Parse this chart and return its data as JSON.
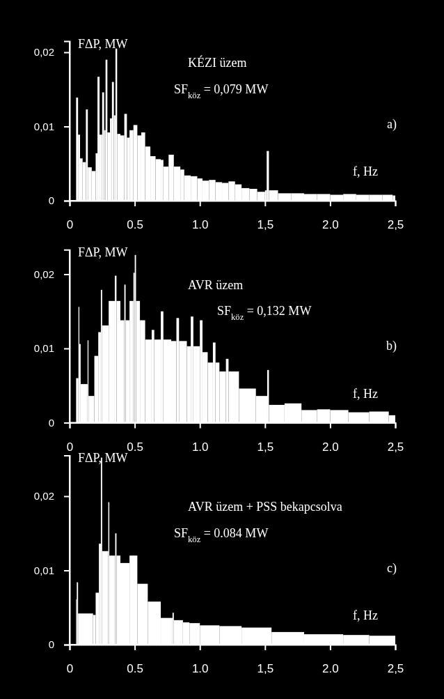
{
  "chart_data": [
    {
      "type": "histogram",
      "xlabel": "f, Hz",
      "ylabel": "FΔP, MW",
      "annotations": [
        "KÉZI üzem",
        "SF$_{köz}$ = 0,079 MW",
        "a)"
      ],
      "color": "#ffffff",
      "xlim": [
        0,
        2.5
      ],
      "xticks": [
        {
          "value": 0,
          "label": "0"
        },
        {
          "value": 0.5,
          "label": "0.5"
        },
        {
          "value": 1,
          "label": "1.0"
        },
        {
          "value": 1.5,
          "label": "1,5"
        },
        {
          "value": 2,
          "label": "2.0"
        },
        {
          "value": 2.5,
          "label": "2,5"
        }
      ],
      "ylim": [
        0,
        0.0215
      ],
      "yticks": [
        {
          "value": 0,
          "label": "0"
        },
        {
          "value": 0.01,
          "label": "0,01"
        },
        {
          "value": 0.02,
          "label": "0,02"
        }
      ],
      "bins": [
        0.05,
        0.065,
        0.08,
        0.1,
        0.125,
        0.14,
        0.17,
        0.2,
        0.214,
        0.23,
        0.25,
        0.265,
        0.276,
        0.29,
        0.31,
        0.325,
        0.34,
        0.352,
        0.365,
        0.39,
        0.42,
        0.44,
        0.46,
        0.49,
        0.52,
        0.55,
        0.58,
        0.62,
        0.66,
        0.7,
        0.72,
        0.76,
        0.8,
        0.85,
        0.88,
        0.93,
        0.98,
        1.02,
        1.07,
        1.12,
        1.17,
        1.22,
        1.27,
        1.32,
        1.38,
        1.44,
        1.5,
        1.513,
        1.53,
        1.6,
        1.7,
        1.8,
        1.9,
        2.0,
        2.1,
        2.2,
        2.3,
        2.4,
        2.48,
        2.5
      ],
      "values": [
        0.0139,
        0.0089,
        0.0057,
        0.0052,
        0.0123,
        0.0045,
        0.004,
        0.0064,
        0.0167,
        0.0089,
        0.0146,
        0.0095,
        0.019,
        0.0092,
        0.0111,
        0.016,
        0.0115,
        0.0205,
        0.009,
        0.0088,
        0.0117,
        0.0085,
        0.0095,
        0.0102,
        0.0088,
        0.0092,
        0.0073,
        0.006,
        0.0056,
        0.0055,
        0.0046,
        0.0062,
        0.0046,
        0.0042,
        0.0034,
        0.0033,
        0.003,
        0.0027,
        0.0028,
        0.0025,
        0.0024,
        0.0026,
        0.0022,
        0.0017,
        0.0016,
        0.0012,
        0.0014,
        0.0067,
        0.0014,
        0.001,
        0.001,
        0.0009,
        0.0009,
        0.0008,
        0.0009,
        0.0008,
        0.0008,
        0.0008,
        0.0007
      ]
    },
    {
      "type": "histogram",
      "xlabel": "f, Hz",
      "ylabel": "FΔP, MW",
      "annotations": [
        "AVR üzem",
        "SF$_{köz}$ = 0,132 MW",
        "b)"
      ],
      "color": "#ffffff",
      "xlim": [
        0,
        2.5
      ],
      "xticks": [
        {
          "value": 0,
          "label": "0"
        },
        {
          "value": 0.5,
          "label": "0.5"
        },
        {
          "value": 1,
          "label": "1.0"
        },
        {
          "value": 1.5,
          "label": "1,5"
        },
        {
          "value": 2,
          "label": "2.0"
        },
        {
          "value": 2.5,
          "label": "2,5"
        }
      ],
      "ylim": [
        0,
        0.0233
      ],
      "yticks": [
        {
          "value": 0,
          "label": "0"
        },
        {
          "value": 0.01,
          "label": "0,01"
        },
        {
          "value": 0.02,
          "label": "0,02"
        }
      ],
      "bins": [
        0.05,
        0.068,
        0.075,
        0.085,
        0.138,
        0.145,
        0.19,
        0.22,
        0.24,
        0.25,
        0.3,
        0.347,
        0.36,
        0.39,
        0.42,
        0.43,
        0.46,
        0.49,
        0.5,
        0.51,
        0.54,
        0.58,
        0.63,
        0.65,
        0.7,
        0.72,
        0.78,
        0.82,
        0.84,
        0.9,
        0.93,
        0.95,
        1.0,
        1.02,
        1.06,
        1.1,
        1.12,
        1.15,
        1.2,
        1.22,
        1.3,
        1.43,
        1.517,
        1.53,
        1.65,
        1.78,
        1.9,
        2.0,
        2.14,
        2.3,
        2.45,
        2.5
      ],
      "values": [
        0.006,
        0.0156,
        0.0106,
        0.0052,
        0.0111,
        0.0036,
        0.009,
        0.0122,
        0.0179,
        0.0131,
        0.0164,
        0.0198,
        0.0164,
        0.0138,
        0.0186,
        0.0138,
        0.0164,
        0.0202,
        0.0226,
        0.0164,
        0.0138,
        0.0112,
        0.0125,
        0.0112,
        0.015,
        0.0112,
        0.011,
        0.0141,
        0.011,
        0.0103,
        0.0143,
        0.0103,
        0.0138,
        0.0095,
        0.0081,
        0.0108,
        0.0081,
        0.0069,
        0.0086,
        0.0069,
        0.0046,
        0.0036,
        0.0071,
        0.0024,
        0.0026,
        0.0017,
        0.0018,
        0.0017,
        0.0014,
        0.0015,
        0.001
      ]
    },
    {
      "type": "histogram",
      "xlabel": "f, Hz",
      "ylabel": "FΔP, MW",
      "annotations": [
        "AVR üzem + PSS bekapcsolva",
        "SF$_{köz}$ = 0.084 MW",
        "c)"
      ],
      "color": "#ffffff",
      "xlim": [
        0,
        2.5
      ],
      "xticks": [
        {
          "value": 0,
          "label": "0"
        },
        {
          "value": 0.5,
          "label": "0.5"
        },
        {
          "value": 1,
          "label": "1.0"
        },
        {
          "value": 1.5,
          "label": "1,5"
        },
        {
          "value": 2,
          "label": "2.0"
        },
        {
          "value": 2.5,
          "label": "2,5"
        }
      ],
      "ylim": [
        0,
        0.0255
      ],
      "yticks": [
        {
          "value": 0,
          "label": "0"
        },
        {
          "value": 0.01,
          "label": "0,01"
        },
        {
          "value": 0.02,
          "label": "0,02"
        }
      ],
      "bins": [
        0.05,
        0.055,
        0.065,
        0.18,
        0.2,
        0.225,
        0.24,
        0.25,
        0.297,
        0.305,
        0.35,
        0.36,
        0.39,
        0.46,
        0.52,
        0.6,
        0.7,
        0.79,
        0.8,
        0.87,
        0.92,
        1.0,
        1.15,
        1.32,
        1.55,
        1.8,
        2.1,
        2.3,
        2.5
      ],
      "values": [
        0.0061,
        0.0084,
        0.0042,
        0.004,
        0.007,
        0.0136,
        0.0252,
        0.0126,
        0.0192,
        0.012,
        0.015,
        0.012,
        0.011,
        0.012,
        0.0082,
        0.0058,
        0.0036,
        0.0043,
        0.0033,
        0.003,
        0.0029,
        0.0026,
        0.0025,
        0.0023,
        0.0017,
        0.0014,
        0.0013,
        0.0012
      ]
    }
  ]
}
